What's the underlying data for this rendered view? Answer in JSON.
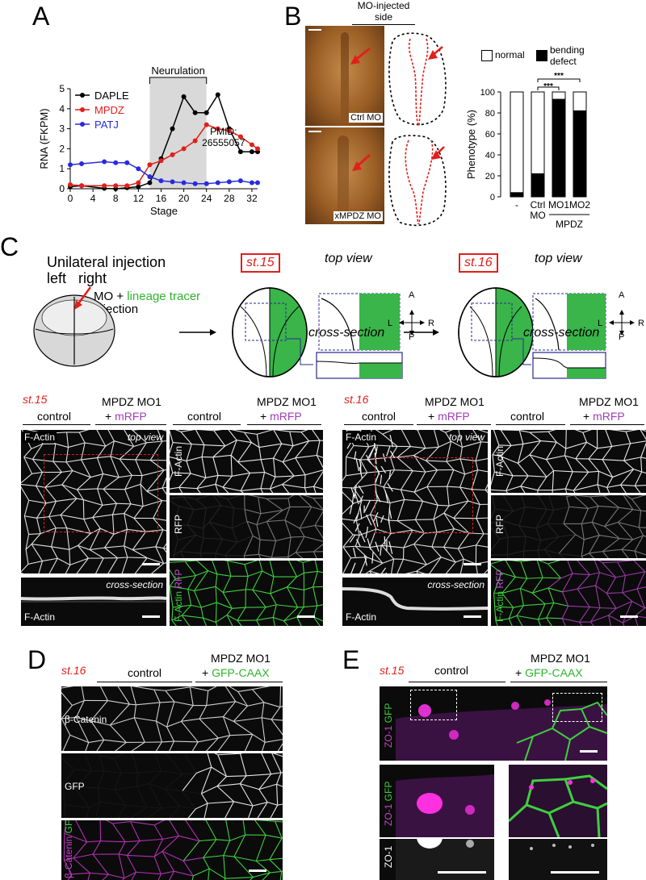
{
  "panels": {
    "A": "A",
    "B": "B",
    "C": "C",
    "D": "D",
    "E": "E"
  },
  "panelA": {
    "neurulation": "Neurulation",
    "ylabel": "RNA (FKPM)",
    "xlabel": "Stage",
    "pmid_line1": "PMID:",
    "pmid_line2": "26555057",
    "legend": [
      "DAPLE",
      "MPDZ",
      "PATJ"
    ]
  },
  "chart_data": [
    {
      "type": "line",
      "xlabel": "Stage",
      "ylabel": "RNA (FKPM)",
      "xlim": [
        0,
        33
      ],
      "ylim": [
        0,
        5
      ],
      "xticks": [
        0,
        4,
        8,
        12,
        16,
        20,
        24,
        28,
        32
      ],
      "yticks": [
        0,
        1,
        2,
        3,
        4,
        5
      ],
      "shaded_region": {
        "label": "Neurulation",
        "x": [
          14,
          24
        ]
      },
      "series": [
        {
          "name": "DAPLE",
          "color": "#000000",
          "x": [
            0,
            2,
            6,
            8,
            10,
            12,
            14,
            16,
            18,
            20,
            22,
            24,
            26,
            28,
            30,
            32,
            33
          ],
          "y": [
            0.1,
            0.15,
            0.02,
            0.0,
            0.05,
            0.1,
            0.3,
            1.5,
            3.0,
            4.6,
            3.8,
            3.8,
            4.7,
            3.0,
            1.85,
            1.85,
            1.85
          ]
        },
        {
          "name": "MPDZ",
          "color": "#e0201b",
          "x": [
            0,
            2,
            6,
            8,
            10,
            12,
            14,
            16,
            18,
            20,
            22,
            24,
            26,
            28,
            30,
            32,
            33
          ],
          "y": [
            0.2,
            0.15,
            0.15,
            0.15,
            0.15,
            0.3,
            1.2,
            1.4,
            1.7,
            2.0,
            2.4,
            3.2,
            3.0,
            2.9,
            2.6,
            2.2,
            2.0
          ]
        },
        {
          "name": "PATJ",
          "color": "#2a2ae0",
          "x": [
            0,
            2,
            6,
            8,
            10,
            12,
            14,
            16,
            18,
            20,
            22,
            24,
            26,
            28,
            30,
            32,
            33
          ],
          "y": [
            1.2,
            1.25,
            1.35,
            1.3,
            1.3,
            1.0,
            0.6,
            0.4,
            0.35,
            0.3,
            0.25,
            0.25,
            0.3,
            0.35,
            0.4,
            0.3,
            0.3
          ]
        }
      ]
    },
    {
      "type": "bar",
      "stacked": true,
      "ylabel": "Phenotype (%)",
      "ylim": [
        0,
        100
      ],
      "yticks": [
        0,
        20,
        40,
        60,
        80,
        100
      ],
      "categories": [
        "-",
        "Ctrl MO",
        "MO1",
        "MO2"
      ],
      "group_label": "MPDZ",
      "series": [
        {
          "name": "bending defect",
          "color": "#000000",
          "values": [
            4,
            22,
            93,
            82
          ]
        },
        {
          "name": "normal",
          "color": "#ffffff",
          "values": [
            96,
            78,
            7,
            18
          ]
        }
      ],
      "significance": [
        "***",
        "***"
      ]
    }
  ],
  "panelB": {
    "mo_injected_side": "MO-injected\nside",
    "ctrl_mo": "Ctrl MO",
    "xmpdz_mo": "xMPDZ MO",
    "legend_normal": "normal",
    "legend_bending": "bending\ndefect",
    "ylabel": "Phenotype (%)",
    "xcat": [
      "-",
      "Ctrl\nMO",
      "MO1",
      "MO2"
    ],
    "group": "MPDZ",
    "sig": "***"
  },
  "panelC": {
    "unilateral": "Unilateral injection",
    "left_right": "left   right",
    "mo_plus": "MO + ",
    "lineage": "lineage tracer",
    "injection": "injection",
    "st15": "st.15",
    "st16": "st.16",
    "top_view": "top view",
    "cross_section": "cross-section",
    "compass": {
      "A": "A",
      "P": "P",
      "L": "L",
      "R": "R"
    },
    "control": "control",
    "mpdz_mo1": "MPDZ MO1",
    "plus": "+ ",
    "mrfp": "mRFP",
    "factin": "F-Actin",
    "rfp": "RFP"
  },
  "panelD": {
    "st16": "st.16",
    "control": "control",
    "mpdz_mo1": "MPDZ MO1",
    "plus": "+ ",
    "gfp_caax": "GFP-CAAX",
    "bcatenin": "β-Catenin",
    "gfp": "GFP"
  },
  "panelE": {
    "st15": "st.15",
    "control": "control",
    "mpdz_mo1": "MPDZ MO1",
    "plus": "+ ",
    "gfp_caax": "GFP-CAAX",
    "zo1": "ZO-1",
    "gfp": "GFP"
  }
}
